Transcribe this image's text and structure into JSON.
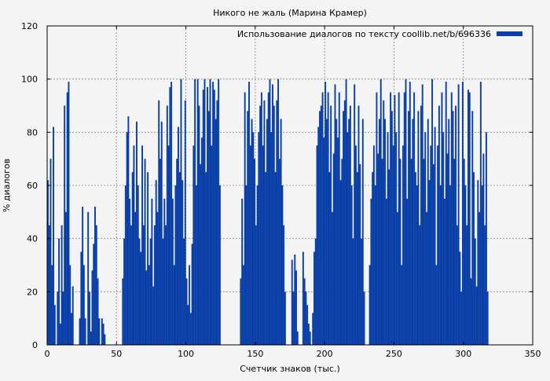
{
  "chart_data": {
    "type": "bar",
    "title": "Никого не жаль (Марина Крамер)",
    "xlabel": "Счетчик знаков (тыс.)",
    "ylabel": "% диалогов",
    "xlim": [
      0,
      350
    ],
    "ylim": [
      0,
      120
    ],
    "x_ticks": [
      "0",
      "50",
      "100",
      "150",
      "200",
      "250",
      "300",
      "350"
    ],
    "y_ticks": [
      "0",
      "20",
      "40",
      "60",
      "80",
      "100",
      "120"
    ],
    "grid": true,
    "legend_position": "top-right",
    "colors": {
      "bars": "#0a3fa8",
      "background": "#f4f4f4",
      "grid": "#888888"
    },
    "series": [
      {
        "name": "Использование диалогов по тексту coollib.net/b/696336",
        "x_step": 1,
        "values": [
          62,
          45,
          70,
          30,
          82,
          15,
          0,
          20,
          40,
          8,
          45,
          20,
          90,
          50,
          95,
          99,
          30,
          12,
          22,
          0,
          0,
          0,
          0,
          10,
          35,
          52,
          30,
          10,
          0,
          50,
          20,
          5,
          28,
          38,
          52,
          45,
          25,
          10,
          0,
          10,
          8,
          4,
          0,
          0,
          0,
          0,
          0,
          0,
          0,
          0,
          0,
          0,
          0,
          0,
          25,
          40,
          60,
          80,
          86,
          55,
          45,
          65,
          75,
          50,
          84,
          60,
          40,
          35,
          75,
          45,
          70,
          28,
          65,
          30,
          40,
          55,
          22,
          45,
          62,
          50,
          92,
          70,
          84,
          40,
          55,
          45,
          90,
          75,
          97,
          99,
          55,
          30,
          60,
          70,
          82,
          65,
          100,
          62,
          40,
          92,
          25,
          15,
          30,
          12,
          38,
          75,
          100,
          60,
          100,
          90,
          68,
          78,
          96,
          100,
          65,
          97,
          88,
          100,
          75,
          99,
          96,
          85,
          92,
          100,
          60,
          0,
          0,
          0,
          0,
          0,
          0,
          0,
          0,
          0,
          0,
          0,
          0,
          0,
          0,
          25,
          55,
          30,
          95,
          60,
          88,
          99,
          75,
          85,
          80,
          70,
          45,
          60,
          80,
          90,
          95,
          75,
          92,
          65,
          85,
          95,
          100,
          80,
          98,
          90,
          65,
          92,
          100,
          70,
          85,
          60,
          45,
          20,
          0,
          0,
          0,
          0,
          32,
          20,
          34,
          28,
          5,
          0,
          0,
          0,
          35,
          25,
          20,
          15,
          8,
          5,
          0,
          12,
          35,
          40,
          75,
          82,
          88,
          90,
          95,
          78,
          99,
          85,
          95,
          65,
          90,
          50,
          72,
          98,
          85,
          78,
          95,
          62,
          70,
          88,
          92,
          100,
          80,
          85,
          90,
          60,
          40,
          98,
          75,
          65,
          90,
          68,
          40,
          85,
          20,
          0,
          0,
          0,
          30,
          55,
          65,
          75,
          60,
          95,
          72,
          85,
          100,
          70,
          92,
          85,
          55,
          80,
          66,
          95,
          88,
          75,
          94,
          80,
          50,
          95,
          70,
          30,
          75,
          95,
          100,
          55,
          88,
          99,
          70,
          85,
          95,
          65,
          60,
          88,
          45,
          90,
          98,
          70,
          80,
          50,
          85,
          62,
          75,
          100,
          68,
          82,
          30,
          75,
          90,
          60,
          95,
          80,
          55,
          99,
          72,
          85,
          60,
          95,
          88,
          70,
          90,
          45,
          98,
          35,
          20,
          99,
          70,
          60,
          45,
          96,
          95,
          25,
          88,
          65,
          40,
          22,
          62,
          50,
          99,
          60,
          72,
          45,
          80,
          20
        ]
      }
    ]
  }
}
